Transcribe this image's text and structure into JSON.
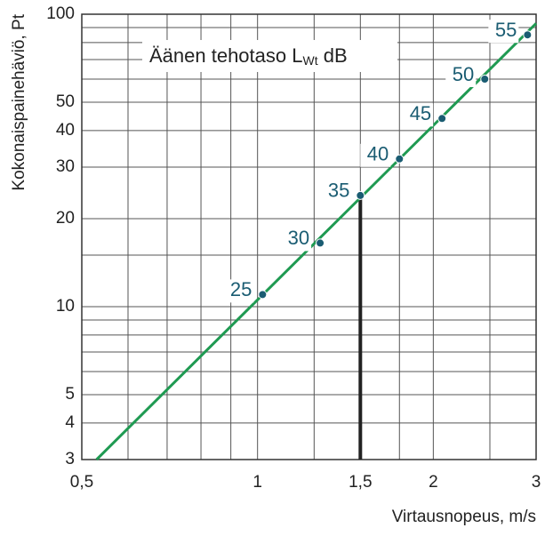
{
  "chart_data": {
    "type": "scatter",
    "log_x": true,
    "log_y": true,
    "xlabel": "Virtausnopeus, m/s",
    "ylabel": "Kokonaispainehäviö, Pt",
    "annotation": {
      "text": "Äänen tehotaso L",
      "subscript": "Wt",
      "suffix": " dB"
    },
    "xlim": [
      0.5,
      3
    ],
    "ylim": [
      3,
      100
    ],
    "xticks": [
      {
        "value": 0.5,
        "label": "0,5"
      },
      1,
      {
        "value": 1.5,
        "label": "1,5"
      },
      2,
      3
    ],
    "yticks": [
      3,
      4,
      5,
      10,
      20,
      30,
      40,
      50,
      100
    ],
    "xgrid_minor": [
      0.6,
      0.7,
      0.8,
      0.9,
      1.25,
      1.75,
      2.5
    ],
    "ygrid_minor": [
      6,
      7,
      8,
      9,
      15,
      60,
      70,
      80,
      90
    ],
    "grid": true,
    "line": {
      "x": [
        0.53,
        3
      ],
      "y": [
        3,
        93
      ],
      "color": "#1f9a52"
    },
    "points": {
      "x": [
        1.02,
        1.28,
        1.5,
        1.75,
        2.07,
        2.45,
        2.9
      ],
      "y": [
        11,
        16.5,
        24,
        32,
        44,
        60,
        85
      ],
      "labels": [
        25,
        30,
        35,
        40,
        45,
        50,
        55
      ],
      "color": "#1a5c72"
    },
    "reference_line": {
      "x": 1.5,
      "y": 24,
      "color": "#222222"
    }
  }
}
